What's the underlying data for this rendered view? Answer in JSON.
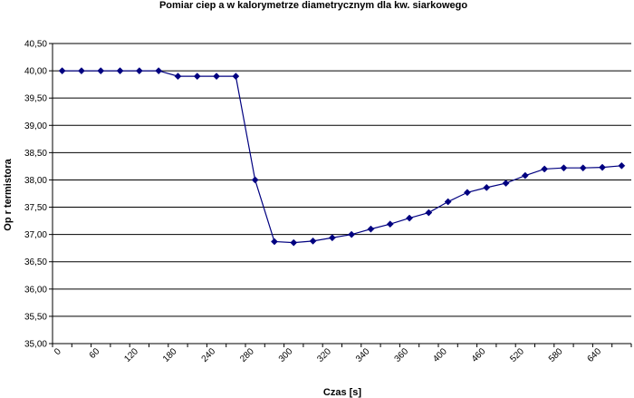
{
  "chart_data": {
    "type": "line",
    "title": "Pomiar ciep a w kalorymetrze diametrycznym dla kw. siarkowego",
    "xlabel": "Czas [s]",
    "ylabel": "Op r termistora",
    "ylim": [
      35.0,
      40.5
    ],
    "ytick_labels": [
      "35,00",
      "35,50",
      "36,00",
      "36,50",
      "37,00",
      "37,50",
      "38,00",
      "38,50",
      "39,00",
      "39,50",
      "40,00",
      "40,50"
    ],
    "xtick_labels": [
      "0",
      "60",
      "120",
      "180",
      "240",
      "280",
      "300",
      "320",
      "340",
      "360",
      "400",
      "460",
      "520",
      "580",
      "640"
    ],
    "grid": "horizontal",
    "line_color": "#000080",
    "series": [
      {
        "values": [
          40.0,
          40.0,
          40.0,
          40.0,
          40.0,
          40.0,
          39.9,
          39.9,
          39.9,
          39.9,
          38.0,
          36.87,
          36.85,
          36.88,
          36.94,
          37.0,
          37.1,
          37.19,
          37.3,
          37.4,
          37.6,
          37.77,
          37.86,
          37.94,
          38.08,
          38.2,
          38.22,
          38.22,
          38.23,
          38.26
        ]
      }
    ]
  }
}
